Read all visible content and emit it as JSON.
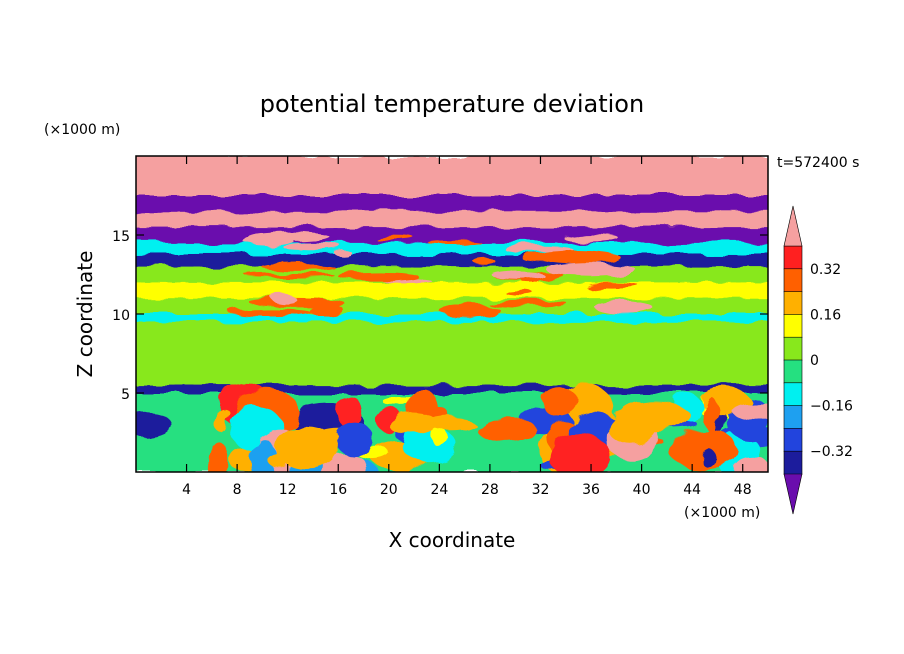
{
  "chart_data": {
    "type": "heatmap",
    "title": "potential temperature deviation",
    "xlabel": "X coordinate",
    "ylabel": "Z coordinate",
    "x_unit": "(×1000 m)",
    "y_unit": "(×1000 m)",
    "time_label": "t=572400 s",
    "xlim": [
      0,
      50
    ],
    "ylim": [
      0,
      20
    ],
    "x_ticks": [
      4,
      8,
      12,
      16,
      20,
      24,
      28,
      32,
      36,
      40,
      44,
      48
    ],
    "x_tick_labels": [
      "4",
      "8",
      "12",
      "16",
      "20",
      "24",
      "28",
      "32",
      "36",
      "40",
      "44",
      "48"
    ],
    "y_ticks": [
      5,
      10,
      15
    ],
    "y_tick_labels": [
      "5",
      "10",
      "15"
    ],
    "colorbar": {
      "levels": [
        -0.4,
        -0.32,
        -0.24,
        -0.16,
        -0.08,
        0,
        0.08,
        0.16,
        0.24,
        0.32,
        0.4
      ],
      "colors": [
        "#6a0dad",
        "#1c1c9c",
        "#2244dd",
        "#1ea0f0",
        "#00f0f0",
        "#25e080",
        "#88e81c",
        "#ffff00",
        "#ffb000",
        "#ff6000",
        "#ff2020",
        "#f5a0a0"
      ],
      "labels": [
        "0.32",
        "0.16",
        "0",
        "−0.16",
        "−0.32"
      ],
      "label_values": [
        0.32,
        0.16,
        0,
        -0.16,
        -0.32
      ]
    },
    "field": {
      "bands": [
        {
          "z": [
            17.5,
            20
          ],
          "value": 0.45
        },
        {
          "z": [
            16.5,
            17.5
          ],
          "value": -0.45
        },
        {
          "z": [
            15.5,
            16.5
          ],
          "value": 0.45
        },
        {
          "z": [
            14.5,
            15.5
          ],
          "value": -0.45
        },
        {
          "z": [
            13.8,
            14.5
          ],
          "value": -0.1
        },
        {
          "z": [
            13.0,
            13.8
          ],
          "value": -0.35
        },
        {
          "z": [
            12.0,
            13.0
          ],
          "value": 0.02
        },
        {
          "z": [
            11.0,
            12.0
          ],
          "value": 0.08
        },
        {
          "z": [
            10.0,
            11.0
          ],
          "value": 0.0
        },
        {
          "z": [
            9.5,
            10.0
          ],
          "value": -0.1
        },
        {
          "z": [
            5.5,
            9.5
          ],
          "value": 0.05
        },
        {
          "z": [
            5.0,
            5.5
          ],
          "value": -0.4
        },
        {
          "z": [
            0,
            5.0
          ],
          "value": -0.05
        }
      ]
    }
  }
}
